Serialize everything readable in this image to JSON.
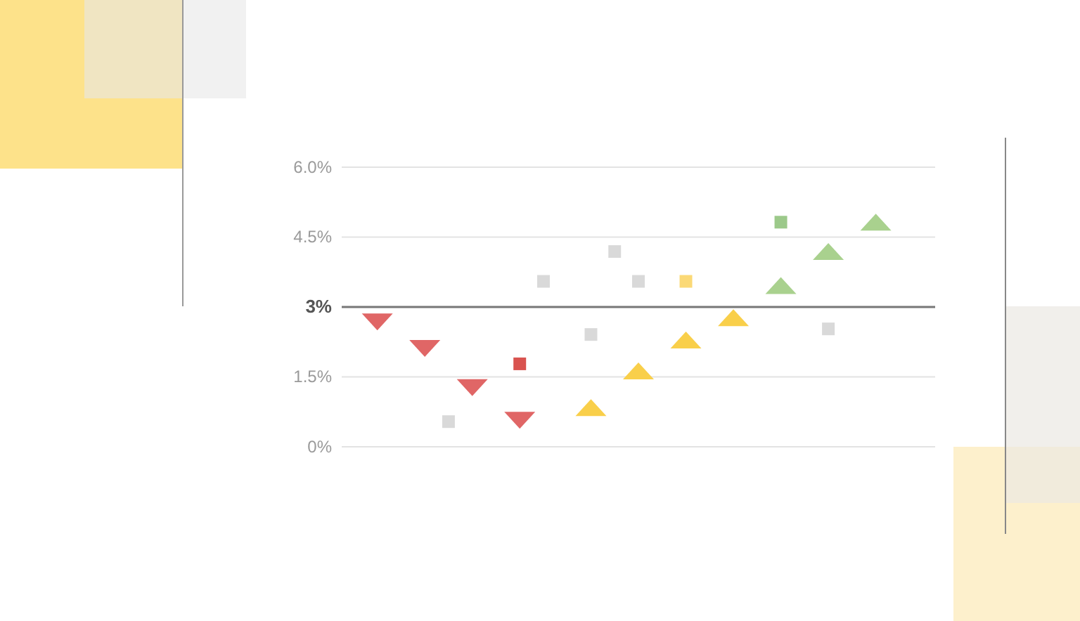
{
  "chart_data": {
    "type": "scatter",
    "categories": [
      null,
      null,
      null,
      null,
      null,
      null,
      null,
      null,
      null,
      null,
      null,
      null,
      null,
      null,
      null,
      null,
      null,
      null,
      null,
      null,
      null,
      null,
      null,
      null,
      null
    ],
    "ylim": [
      0,
      6
    ],
    "yticks": [
      {
        "value": 0,
        "label": "0%"
      },
      {
        "value": 1.5,
        "label": "1.5%"
      },
      {
        "value": 3,
        "label": "3%"
      },
      {
        "value": 4.5,
        "label": "4.5%"
      },
      {
        "value": 6,
        "label": "6.0%"
      }
    ],
    "grid": "y",
    "ref_lines": [
      {
        "axis": "y",
        "value": 3,
        "color": "#777777"
      }
    ],
    "series": [
      {
        "color": "#e06666",
        "marker": "triangle-down",
        "values": [
          null,
          2.68,
          null,
          2.11,
          null,
          1.27,
          null,
          0.57,
          null,
          null,
          null,
          null,
          null,
          null,
          null,
          null,
          null,
          null,
          null,
          null,
          null,
          null,
          null,
          null,
          null
        ]
      },
      {
        "color": "#f9cf4a",
        "marker": "triangle",
        "values": [
          null,
          null,
          null,
          null,
          null,
          null,
          null,
          null,
          null,
          null,
          0.84,
          null,
          1.63,
          null,
          2.29,
          null,
          2.77,
          null,
          null,
          null,
          null,
          null,
          null,
          null,
          null
        ]
      },
      {
        "color": "#a9d18e",
        "marker": "triangle",
        "values": [
          null,
          null,
          null,
          null,
          null,
          null,
          null,
          null,
          null,
          null,
          null,
          null,
          null,
          null,
          null,
          null,
          null,
          null,
          3.46,
          null,
          4.19,
          null,
          4.82,
          null,
          null
        ]
      },
      {
        "color": "#d9d9d9",
        "marker": "square",
        "values": [
          null,
          null,
          null,
          null,
          0.54,
          null,
          null,
          null,
          3.55,
          null,
          2.41,
          4.19,
          3.55,
          null,
          null,
          null,
          null,
          null,
          null,
          null,
          2.53,
          null,
          null,
          null,
          null
        ]
      },
      {
        "color": "#d9534f",
        "marker": "square",
        "values": [
          null,
          null,
          null,
          null,
          null,
          null,
          null,
          1.78,
          null,
          null,
          null,
          null,
          null,
          null,
          null,
          null,
          null,
          null,
          null,
          null,
          null,
          null,
          null,
          null,
          null
        ]
      },
      {
        "color": "#fbd976",
        "marker": "square",
        "values": [
          null,
          null,
          null,
          null,
          null,
          null,
          null,
          null,
          null,
          null,
          null,
          null,
          null,
          null,
          3.55,
          null,
          null,
          null,
          null,
          null,
          null,
          null,
          null,
          null,
          null
        ]
      },
      {
        "color": "#9cc98a",
        "marker": "square",
        "values": [
          null,
          null,
          null,
          null,
          null,
          null,
          null,
          null,
          null,
          null,
          null,
          null,
          null,
          null,
          null,
          null,
          null,
          null,
          4.82,
          null,
          null,
          null,
          null,
          null,
          null
        ]
      }
    ]
  }
}
